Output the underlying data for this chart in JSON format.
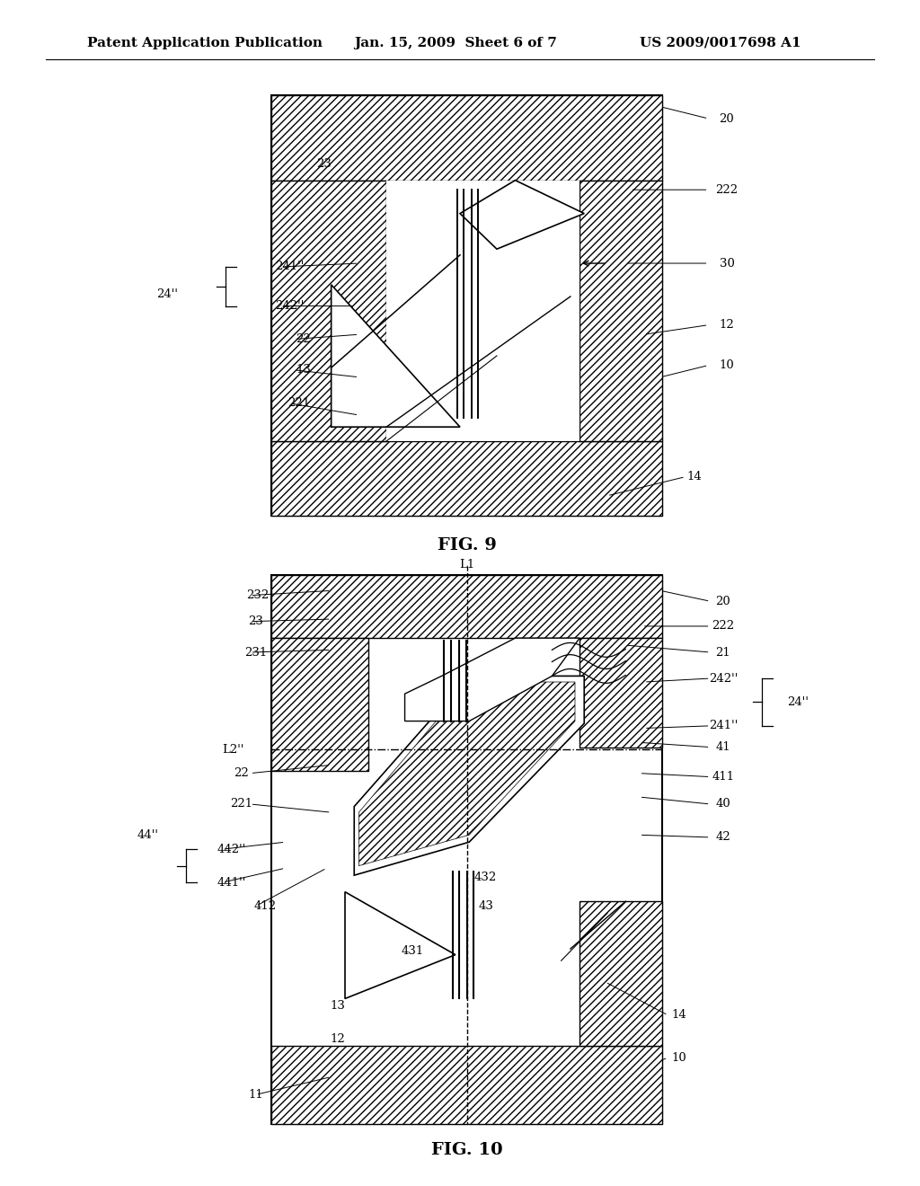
{
  "bg_color": "#ffffff",
  "header_text": "Patent Application Publication",
  "header_date": "Jan. 15, 2009  Sheet 6 of 7",
  "header_patent": "US 2009/0017698 A1",
  "fig9_label": "FIG. 9",
  "fig10_label": "FIG. 10",
  "line_color": "#000000"
}
